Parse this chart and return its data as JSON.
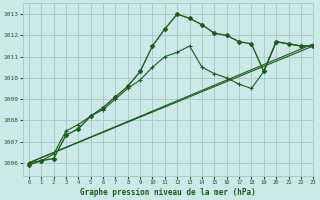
{
  "bg_color": "#cce8e8",
  "grid_color": "#a8cccc",
  "line_color": "#1a5c1a",
  "title": "Graphe pression niveau de la mer (hPa)",
  "xlim": [
    -0.5,
    23
  ],
  "ylim": [
    1005.4,
    1013.5
  ],
  "yticks": [
    1006,
    1007,
    1008,
    1009,
    1010,
    1011,
    1012,
    1013
  ],
  "xticks": [
    0,
    1,
    2,
    3,
    4,
    5,
    6,
    7,
    8,
    9,
    10,
    11,
    12,
    13,
    14,
    15,
    16,
    17,
    18,
    19,
    20,
    21,
    22,
    23
  ],
  "series_straight1": {
    "x": [
      0,
      23
    ],
    "y": [
      1006.0,
      1011.5
    ]
  },
  "series_straight2": {
    "x": [
      0,
      23
    ],
    "y": [
      1006.0,
      1011.6
    ]
  },
  "series_curved": {
    "x": [
      0,
      1,
      2,
      3,
      4,
      5,
      6,
      7,
      8,
      9,
      10,
      11,
      12,
      13,
      14,
      15,
      16,
      17,
      18,
      19,
      20,
      21,
      22,
      23
    ],
    "y": [
      1005.9,
      1006.1,
      1006.2,
      1007.3,
      1007.6,
      1008.2,
      1008.6,
      1009.1,
      1009.6,
      1010.3,
      1011.5,
      1012.3,
      1013.0,
      1012.8,
      1012.5,
      1012.1,
      1012.0,
      1011.7,
      1011.6,
      1010.3,
      1011.7,
      1011.6,
      1011.5,
      1011.5
    ]
  },
  "series_line2": {
    "x": [
      0,
      1,
      2,
      3,
      4,
      5,
      6,
      7,
      8,
      9,
      10,
      11,
      12,
      13,
      14,
      15,
      16,
      17,
      18,
      19,
      20,
      21,
      22,
      23
    ],
    "y": [
      1006.0,
      1006.1,
      1006.4,
      1007.5,
      1007.8,
      1008.2,
      1008.5,
      1009.0,
      1009.5,
      1009.9,
      1010.5,
      1011.0,
      1011.2,
      1011.5,
      1010.5,
      1010.2,
      1010.0,
      1009.7,
      1009.5,
      1010.3,
      1011.7,
      1011.6,
      1011.5,
      1011.5
    ]
  }
}
